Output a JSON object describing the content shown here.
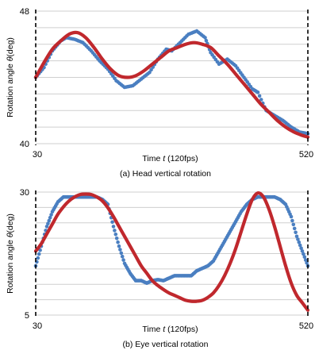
{
  "chart_data": [
    {
      "type": "line",
      "caption": "(a) Head vertical rotation",
      "xlabel_prefix": "Time ",
      "xlabel_var": "t",
      "xlabel_suffix": " (120fps)",
      "ylabel_prefix": "Rotation angle ",
      "ylabel_var": "θ",
      "ylabel_suffix": "(deg)",
      "xlim": [
        30,
        520
      ],
      "ylim": [
        40,
        48
      ],
      "xticks": [
        "30",
        "520"
      ],
      "yticks": [
        "48",
        "40"
      ],
      "grid": true,
      "series": [
        {
          "color": "#4a7fc1",
          "style": "dots",
          "x": [
            30,
            45,
            60,
            75,
            85,
            100,
            115,
            130,
            145,
            160,
            175,
            190,
            205,
            220,
            235,
            250,
            265,
            275,
            290,
            305,
            320,
            335,
            345,
            360,
            375,
            390,
            405,
            420,
            430,
            445,
            460,
            475,
            490,
            505,
            520
          ],
          "y": [
            44.0,
            44.6,
            45.6,
            46.2,
            46.4,
            46.3,
            46.1,
            45.6,
            45.0,
            44.5,
            43.8,
            43.4,
            43.5,
            43.9,
            44.3,
            45.1,
            45.7,
            45.6,
            46.1,
            46.6,
            46.8,
            46.4,
            45.5,
            44.8,
            45.1,
            44.7,
            44.0,
            43.3,
            43.1,
            42.0,
            41.7,
            41.4,
            41.0,
            40.7,
            40.6
          ]
        },
        {
          "color": "#c0282d",
          "style": "thick",
          "x": [
            30,
            45,
            60,
            75,
            90,
            105,
            120,
            135,
            150,
            165,
            180,
            195,
            210,
            225,
            240,
            255,
            270,
            285,
            300,
            315,
            330,
            345,
            360,
            375,
            390,
            405,
            420,
            435,
            450,
            465,
            480,
            495,
            510,
            520
          ],
          "y": [
            44.0,
            44.9,
            45.7,
            46.2,
            46.6,
            46.7,
            46.4,
            45.8,
            45.1,
            44.5,
            44.1,
            44.0,
            44.1,
            44.4,
            44.8,
            45.2,
            45.6,
            45.8,
            46.0,
            46.1,
            46.0,
            45.8,
            45.3,
            44.8,
            44.2,
            43.6,
            43.0,
            42.4,
            41.9,
            41.4,
            41.0,
            40.7,
            40.5,
            40.4
          ]
        }
      ]
    },
    {
      "type": "line",
      "caption": "(b) Eye vertical rotation",
      "xlabel_prefix": "Time ",
      "xlabel_var": "t",
      "xlabel_suffix": " (120fps)",
      "ylabel_prefix": "Rotation angle ",
      "ylabel_var": "θ",
      "ylabel_suffix": "(deg)",
      "xlim": [
        30,
        520
      ],
      "ylim": [
        5,
        30
      ],
      "xticks": [
        "30",
        "520"
      ],
      "yticks": [
        "30",
        "5"
      ],
      "grid": true,
      "series": [
        {
          "color": "#4a7fc1",
          "style": "dots",
          "x": [
            30,
            40,
            50,
            60,
            70,
            80,
            90,
            100,
            110,
            120,
            130,
            140,
            150,
            160,
            170,
            180,
            190,
            200,
            210,
            220,
            230,
            240,
            250,
            260,
            270,
            280,
            290,
            300,
            310,
            320,
            330,
            340,
            350,
            360,
            370,
            380,
            390,
            400,
            410,
            420,
            430,
            440,
            450,
            460,
            470,
            480,
            490,
            500,
            510,
            520
          ],
          "y": [
            15.0,
            19.0,
            23.0,
            26.0,
            28.0,
            29.0,
            29.0,
            29.0,
            29.0,
            29.0,
            29.0,
            29.0,
            28.5,
            27.5,
            23.0,
            19.0,
            15.5,
            13.5,
            12.0,
            12.0,
            11.5,
            12.0,
            12.2,
            12.0,
            12.5,
            13.0,
            13.0,
            13.0,
            13.0,
            14.0,
            14.5,
            15.0,
            16.0,
            18.0,
            20.0,
            22.0,
            24.0,
            26.0,
            27.5,
            28.5,
            29.0,
            29.0,
            29.0,
            29.0,
            28.5,
            27.5,
            25.0,
            21.0,
            18.0,
            15.0
          ]
        },
        {
          "color": "#c0282d",
          "style": "thick",
          "x": [
            30,
            40,
            50,
            60,
            70,
            80,
            90,
            100,
            110,
            120,
            130,
            140,
            150,
            160,
            170,
            180,
            190,
            200,
            210,
            220,
            230,
            240,
            250,
            260,
            270,
            280,
            290,
            300,
            310,
            320,
            330,
            340,
            350,
            360,
            370,
            380,
            390,
            400,
            410,
            420,
            430,
            440,
            450,
            460,
            470,
            480,
            490,
            500,
            510,
            520
          ],
          "y": [
            18.0,
            19.5,
            21.5,
            23.5,
            25.5,
            27.0,
            28.2,
            29.0,
            29.5,
            29.6,
            29.5,
            29.0,
            28.2,
            26.8,
            25.0,
            23.0,
            21.0,
            19.0,
            17.0,
            15.0,
            13.5,
            12.0,
            11.0,
            10.2,
            9.5,
            9.0,
            8.5,
            8.0,
            7.8,
            7.8,
            8.0,
            8.6,
            9.5,
            11.0,
            13.0,
            15.5,
            18.5,
            22.0,
            25.5,
            28.5,
            29.8,
            29.0,
            26.5,
            23.0,
            19.0,
            15.0,
            11.5,
            9.0,
            7.5,
            6.0
          ]
        }
      ]
    }
  ]
}
